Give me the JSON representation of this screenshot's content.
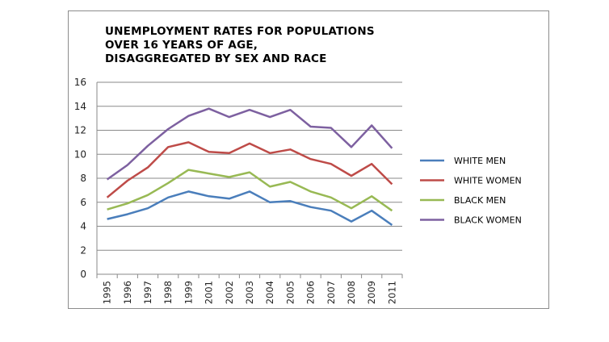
{
  "chart_data": {
    "type": "line",
    "title": "UNEMPLOYMENT RATES FOR POPULATIONS\nOVER 16 YEARS OF AGE,\nDISAGGREGATED BY SEX AND RACE",
    "xlabel": "",
    "ylabel": "",
    "x": [
      "1995",
      "1996",
      "1997",
      "1998",
      "1999",
      "2001",
      "2002",
      "2003",
      "2004",
      "2005",
      "2006",
      "2007",
      "2008",
      "2009",
      "2011"
    ],
    "ylim": [
      0,
      16
    ],
    "yticks": [
      "0",
      "2",
      "4",
      "6",
      "8",
      "10",
      "12",
      "14",
      "16"
    ],
    "grid": true,
    "legend_position": "right",
    "series": [
      {
        "name": "WHITE MEN",
        "color": "#4a7ebb",
        "values": [
          4.6,
          5.0,
          5.5,
          6.4,
          6.9,
          6.5,
          6.3,
          6.9,
          6.0,
          6.1,
          5.6,
          5.3,
          4.4,
          5.3,
          4.1
        ]
      },
      {
        "name": "WHITE WOMEN",
        "color": "#be4b48",
        "values": [
          6.4,
          7.8,
          8.9,
          10.6,
          11.0,
          10.2,
          10.1,
          10.9,
          10.1,
          10.4,
          9.6,
          9.2,
          8.2,
          9.2,
          7.5
        ]
      },
      {
        "name": "BLACK MEN",
        "color": "#98b954",
        "values": [
          5.4,
          5.9,
          6.6,
          7.6,
          8.7,
          8.4,
          8.1,
          8.5,
          7.3,
          7.7,
          6.9,
          6.4,
          5.5,
          6.5,
          5.3
        ]
      },
      {
        "name": "BLACK WOMEN",
        "color": "#7d60a0",
        "values": [
          7.9,
          9.1,
          10.7,
          12.1,
          13.2,
          13.8,
          13.1,
          13.7,
          13.1,
          13.7,
          12.3,
          12.2,
          10.6,
          12.4,
          10.5
        ]
      }
    ]
  }
}
